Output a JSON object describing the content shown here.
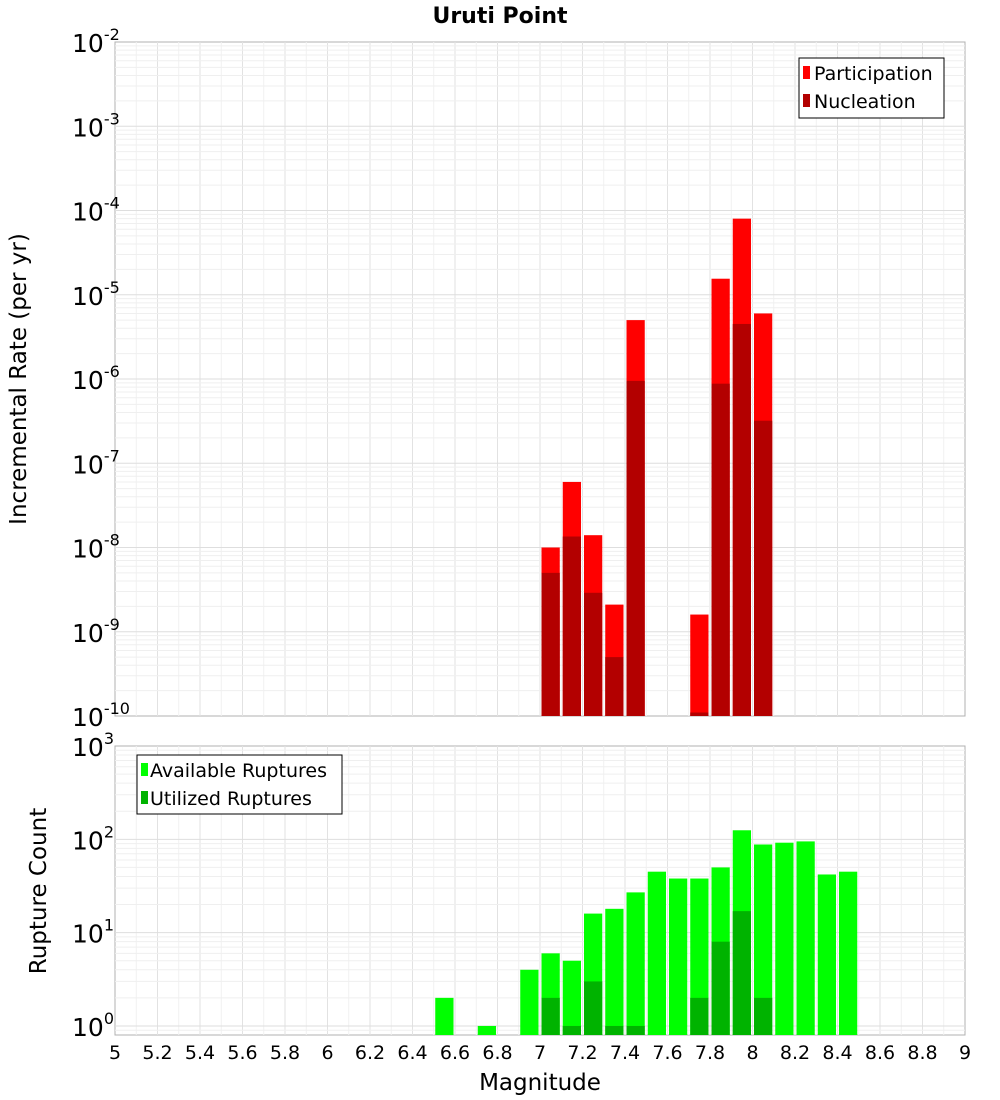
{
  "chart_data": [
    {
      "type": "bar",
      "title": "Uruti Point",
      "xlabel": "",
      "ylabel": "Incremental Rate (per yr)",
      "y_scale": "log",
      "ylim": [
        1e-10,
        0.01
      ],
      "xlim": [
        5,
        9
      ],
      "bar_width": 0.1,
      "overlay": true,
      "grid": true,
      "legend_position": "top-right",
      "series": [
        {
          "name": "Participation",
          "color": "#ff0000",
          "x": [
            7.0,
            7.1,
            7.2,
            7.3,
            7.4,
            7.7,
            7.8,
            7.9,
            8.0
          ],
          "values": [
            1e-08,
            6e-08,
            1.4e-08,
            2.1e-09,
            5e-06,
            1.6e-09,
            1.55e-05,
            8e-05,
            6e-06
          ]
        },
        {
          "name": "Nucleation",
          "color": "#b30000",
          "x": [
            7.0,
            7.1,
            7.2,
            7.3,
            7.4,
            7.7,
            7.8,
            7.9,
            8.0
          ],
          "values": [
            5e-09,
            1.35e-08,
            2.9e-09,
            5e-10,
            9.5e-07,
            1.1e-10,
            8.8e-07,
            4.5e-06,
            3.2e-07
          ]
        }
      ]
    },
    {
      "type": "bar",
      "title": "",
      "xlabel": "Magnitude",
      "ylabel": "Rupture Count",
      "y_scale": "log",
      "ylim": [
        0.8,
        1000
      ],
      "xlim": [
        5,
        9
      ],
      "bar_width": 0.1,
      "overlay": true,
      "grid": true,
      "legend_position": "top-left",
      "x_ticks": [
        "5",
        "5.2",
        "5.4",
        "5.6",
        "5.8",
        "6",
        "6.2",
        "6.4",
        "6.6",
        "6.8",
        "7",
        "7.2",
        "7.4",
        "7.6",
        "7.8",
        "8",
        "8.2",
        "8.4",
        "8.6",
        "8.8",
        "9"
      ],
      "series": [
        {
          "name": "Available Ruptures",
          "color": "#00ff00",
          "x": [
            6.5,
            6.7,
            6.9,
            7.0,
            7.1,
            7.2,
            7.3,
            7.4,
            7.5,
            7.6,
            7.7,
            7.8,
            7.9,
            8.0,
            8.1,
            8.2,
            8.3,
            8.4
          ],
          "values": [
            2,
            1,
            4,
            6,
            5,
            16,
            18,
            27,
            45,
            38,
            38,
            50,
            125,
            88,
            92,
            95,
            42,
            45
          ]
        },
        {
          "name": "Utilized Ruptures",
          "color": "#00b300",
          "x": [
            7.0,
            7.1,
            7.2,
            7.3,
            7.4,
            7.7,
            7.8,
            7.9,
            8.0
          ],
          "values": [
            2,
            1,
            3,
            1,
            1,
            2,
            8,
            17,
            2
          ]
        }
      ]
    }
  ]
}
